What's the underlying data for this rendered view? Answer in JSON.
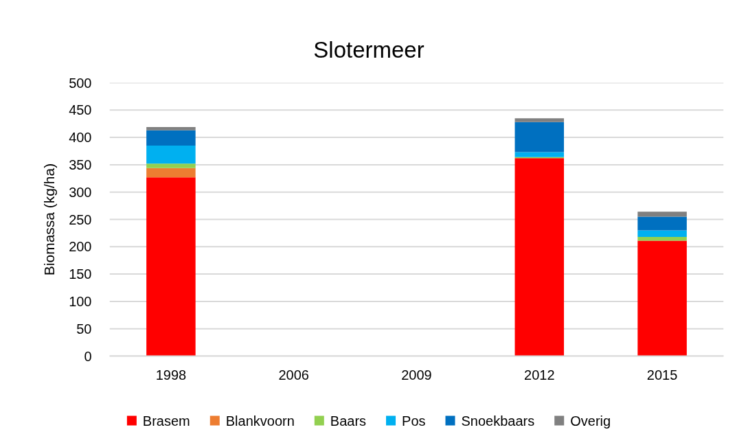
{
  "chart_data": {
    "type": "bar",
    "title": "Slotermeer",
    "ylabel": "Biomassa (kg/ha)",
    "categories": [
      "1998",
      "2006",
      "2009",
      "2012",
      "2015"
    ],
    "stacked": true,
    "series": [
      {
        "name": "Brasem",
        "color": "#ff0000",
        "values": [
          327,
          null,
          null,
          362,
          211
        ]
      },
      {
        "name": "Blankvoorn",
        "color": "#ed7d31",
        "values": [
          17,
          null,
          null,
          0,
          0
        ]
      },
      {
        "name": "Baars",
        "color": "#92d050",
        "values": [
          8,
          null,
          null,
          2,
          7
        ]
      },
      {
        "name": "Pos",
        "color": "#00b0f0",
        "values": [
          33,
          null,
          null,
          9,
          12
        ]
      },
      {
        "name": "Snoekbaars",
        "color": "#0070c0",
        "values": [
          28,
          null,
          null,
          55,
          25
        ]
      },
      {
        "name": "Overig",
        "color": "#808080",
        "values": [
          6,
          null,
          null,
          7,
          9
        ]
      }
    ],
    "ylim": [
      0,
      500
    ],
    "yticks": [
      0,
      50,
      100,
      150,
      200,
      250,
      300,
      350,
      400,
      450,
      500
    ],
    "grid": "y",
    "legend": "bottom"
  }
}
